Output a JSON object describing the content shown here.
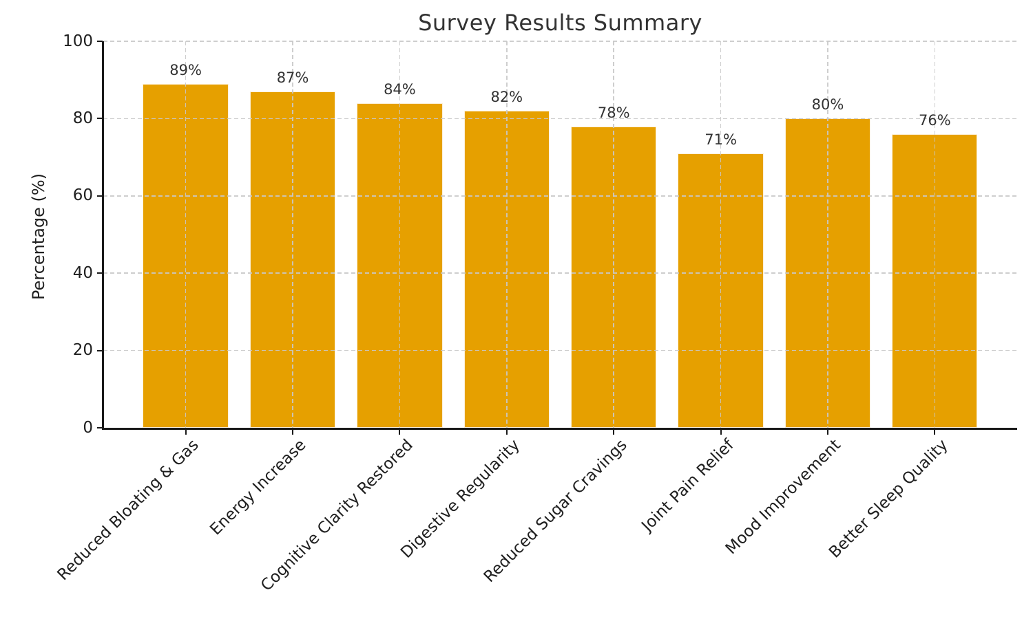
{
  "chart_data": {
    "type": "bar",
    "title": "Survey Results Summary",
    "categories": [
      "Reduced Bloating & Gas",
      "Energy Increase",
      "Cognitive Clarity Restored",
      "Digestive Regularity",
      "Reduced Sugar Cravings",
      "Joint Pain Relief",
      "Mood Improvement",
      "Better Sleep Quality"
    ],
    "values": [
      89,
      87,
      84,
      82,
      78,
      71,
      80,
      76
    ],
    "value_labels": [
      "89%",
      "87%",
      "84%",
      "82%",
      "78%",
      "71%",
      "80%",
      "76%"
    ],
    "xlabel": "",
    "ylabel": "Percentage (%)",
    "ylim": [
      0,
      100
    ],
    "yticks": [
      0,
      20,
      40,
      60,
      80,
      100
    ],
    "grid": true,
    "grid_axis": "both",
    "grid_linestyle": "dashed",
    "x_tick_rotation": 45,
    "legend": "none",
    "colors": {
      "bar_fill": "#E6A000",
      "bar_edge": "#FFFFFF",
      "grid": "#C8C8C8",
      "spine": "#1A1A1A",
      "title_text": "#333333",
      "tick_text": "#1F1F1F",
      "value_text": "#333333",
      "background": "#FFFFFF"
    }
  }
}
